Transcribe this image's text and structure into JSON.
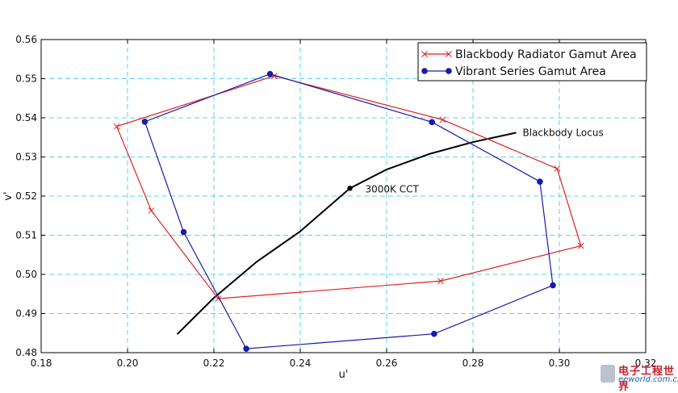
{
  "chart_data": {
    "type": "line",
    "xlabel": "u'",
    "ylabel": "v'",
    "xlim": [
      0.18,
      0.32
    ],
    "ylim": [
      0.48,
      0.56
    ],
    "xticks": [
      0.18,
      0.2,
      0.22,
      0.24,
      0.26,
      0.28,
      0.3,
      0.32
    ],
    "yticks": [
      0.48,
      0.49,
      0.5,
      0.51,
      0.52,
      0.53,
      0.54,
      0.55,
      0.56
    ],
    "xtick_labels": [
      "0.18",
      "0.20",
      "0.22",
      "0.24",
      "0.26",
      "0.28",
      "0.30",
      "0.32"
    ],
    "ytick_labels": [
      "0.48",
      "0.49",
      "0.50",
      "0.51",
      "0.52",
      "0.53",
      "0.54",
      "0.55",
      "0.56"
    ],
    "grid": true,
    "legend_position": "top-right",
    "series": [
      {
        "name": "Blackbody Radiator Gamut Area",
        "color": "#dd2222",
        "marker": "x",
        "points": [
          [
            0.234,
            0.5507
          ],
          [
            0.273,
            0.5395
          ],
          [
            0.2995,
            0.527
          ],
          [
            0.305,
            0.5073
          ],
          [
            0.2725,
            0.4983
          ],
          [
            0.221,
            0.4938
          ],
          [
            0.2055,
            0.5163
          ],
          [
            0.1975,
            0.5378
          ],
          [
            0.234,
            0.5507
          ]
        ]
      },
      {
        "name": "Vibrant Series Gamut Area",
        "color": "#1a1aaa",
        "marker": "o",
        "points": [
          [
            0.233,
            0.5512
          ],
          [
            0.2705,
            0.5389
          ],
          [
            0.2955,
            0.5237
          ],
          [
            0.2985,
            0.4972
          ],
          [
            0.271,
            0.4848
          ],
          [
            0.2275,
            0.481
          ],
          [
            0.213,
            0.5108
          ],
          [
            0.204,
            0.539
          ],
          [
            0.233,
            0.5512
          ]
        ]
      }
    ],
    "locus": {
      "label": "Blackbody Locus",
      "color": "#000000",
      "points": [
        [
          0.2115,
          0.4847
        ],
        [
          0.22,
          0.494
        ],
        [
          0.23,
          0.5033
        ],
        [
          0.24,
          0.511
        ],
        [
          0.2515,
          0.522
        ],
        [
          0.26,
          0.5268
        ],
        [
          0.27,
          0.5308
        ],
        [
          0.28,
          0.5338
        ],
        [
          0.29,
          0.5362
        ]
      ]
    },
    "annotations": [
      {
        "label": "3000K CCT",
        "point": [
          0.2515,
          0.522
        ]
      }
    ]
  },
  "watermark": {
    "cn": "电子工程世界",
    "en": "eeworld.com.cn"
  }
}
